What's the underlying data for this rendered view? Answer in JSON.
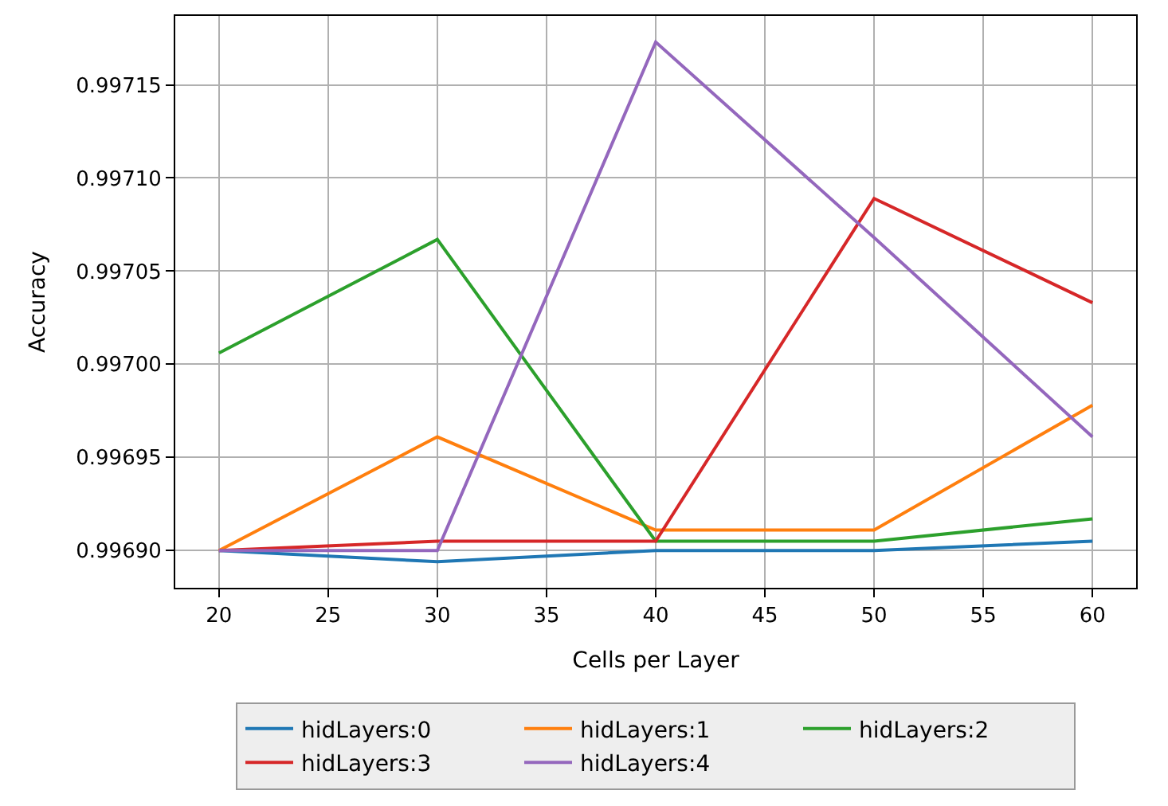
{
  "chart_data": {
    "type": "line",
    "xlabel": "Cells per Layer",
    "ylabel": "Accuracy",
    "x": [
      20,
      30,
      40,
      50,
      60
    ],
    "series": [
      {
        "name": "hidLayers:0",
        "color": "#1f77b4",
        "values": [
          0.9969,
          0.996894,
          0.9969,
          0.9969,
          0.996905
        ]
      },
      {
        "name": "hidLayers:1",
        "color": "#ff7f0e",
        "values": [
          0.9969,
          0.996961,
          0.996911,
          0.996911,
          0.996978
        ]
      },
      {
        "name": "hidLayers:2",
        "color": "#2ca02c",
        "values": [
          0.997006,
          0.997067,
          0.996905,
          0.996905,
          0.996917
        ]
      },
      {
        "name": "hidLayers:3",
        "color": "#d62728",
        "values": [
          0.9969,
          0.996905,
          0.996905,
          0.997089,
          0.997033
        ]
      },
      {
        "name": "hidLayers:4",
        "color": "#9467bd",
        "values": [
          0.9969,
          0.9969,
          0.997173,
          0.997068,
          0.996961
        ]
      }
    ],
    "xlim": [
      18,
      62
    ],
    "xticks": [
      20,
      25,
      30,
      35,
      40,
      45,
      50,
      55,
      60
    ],
    "ylim": [
      0.99688,
      0.997187
    ],
    "yticks": [
      {
        "value": 0.9969,
        "label": "0.99690"
      },
      {
        "value": 0.99695,
        "label": "0.99695"
      },
      {
        "value": 0.997,
        "label": "0.99700"
      },
      {
        "value": 0.99705,
        "label": "0.99705"
      },
      {
        "value": 0.9971,
        "label": "0.99710"
      },
      {
        "value": 0.99715,
        "label": "0.99715"
      }
    ],
    "grid": true,
    "legend": "bottom",
    "marker": "none",
    "line_style": "solid"
  }
}
